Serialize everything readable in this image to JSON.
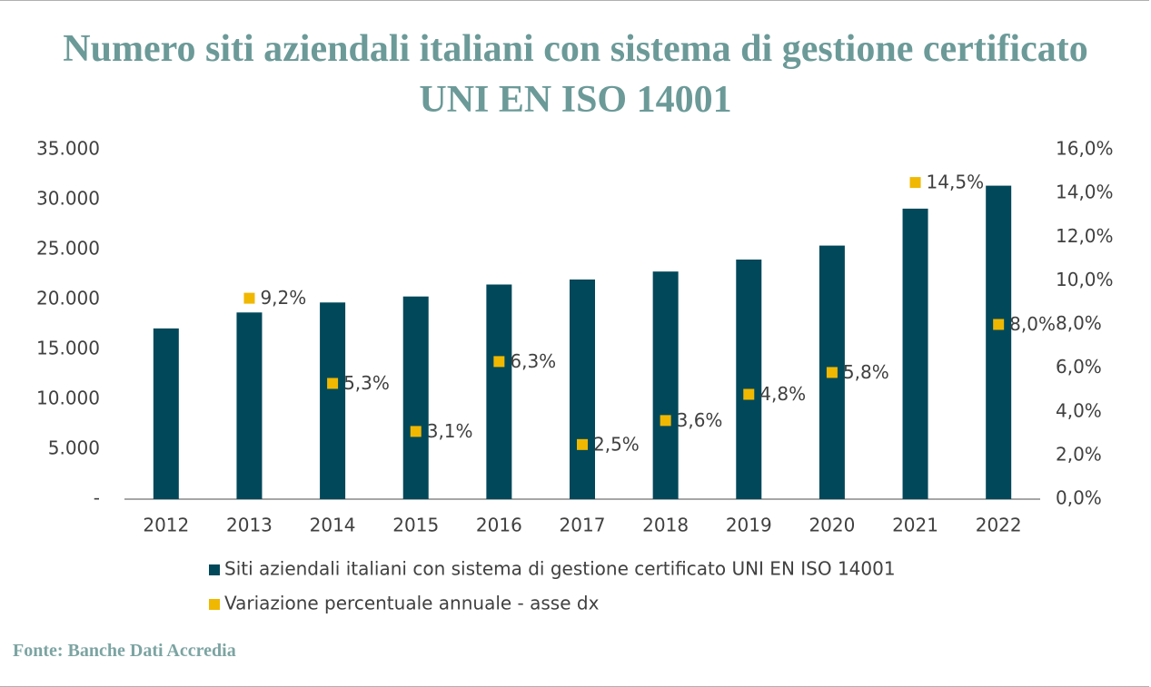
{
  "chart_data": {
    "type": "bar",
    "title": "Numero siti aziendali italiani con sistema di gestione certificato UNI EN ISO 14001",
    "source": "Fonte: Banche Dati Accredia",
    "categories": [
      "2012",
      "2013",
      "2014",
      "2015",
      "2016",
      "2017",
      "2018",
      "2019",
      "2020",
      "2021",
      "2022"
    ],
    "series": [
      {
        "name": "Siti aziendali italiani con sistema di gestione certificato UNI EN ISO 14001",
        "type": "bar",
        "color": "#00485a",
        "values": [
          17100,
          18700,
          19700,
          20300,
          21500,
          22000,
          22800,
          24000,
          25400,
          29100,
          31400
        ]
      },
      {
        "name": "Variazione percentuale annuale - asse dx",
        "type": "scatter",
        "axis": "y2",
        "color": "#f0b800",
        "values": [
          null,
          9.2,
          5.3,
          3.1,
          6.3,
          2.5,
          3.6,
          4.8,
          5.8,
          14.5,
          8.0
        ],
        "value_labels": [
          null,
          "9,2%",
          "5,3%",
          "3,1%",
          "6,3%",
          "2,5%",
          "3,6%",
          "4,8%",
          "5,8%",
          "14,5%",
          "8,0%"
        ]
      }
    ],
    "ylim": [
      0,
      35000
    ],
    "yticks": [
      {
        "value": 0,
        "label": "-"
      },
      {
        "value": 5000,
        "label": "5.000"
      },
      {
        "value": 10000,
        "label": "10.000"
      },
      {
        "value": 15000,
        "label": "15.000"
      },
      {
        "value": 20000,
        "label": "20.000"
      },
      {
        "value": 25000,
        "label": "25.000"
      },
      {
        "value": 30000,
        "label": "30.000"
      },
      {
        "value": 35000,
        "label": "35.000"
      }
    ],
    "y2lim": [
      0,
      16
    ],
    "y2ticks": [
      {
        "value": 0,
        "label": "0,0%"
      },
      {
        "value": 2,
        "label": "2,0%"
      },
      {
        "value": 4,
        "label": "4,0%"
      },
      {
        "value": 6,
        "label": "6,0%"
      },
      {
        "value": 8,
        "label": "8,0%"
      },
      {
        "value": 10,
        "label": "10,0%"
      },
      {
        "value": 12,
        "label": "12,0%"
      },
      {
        "value": 14,
        "label": "14,0%"
      },
      {
        "value": 16,
        "label": "16,0%"
      }
    ],
    "grid": false,
    "legend": "bottom"
  }
}
